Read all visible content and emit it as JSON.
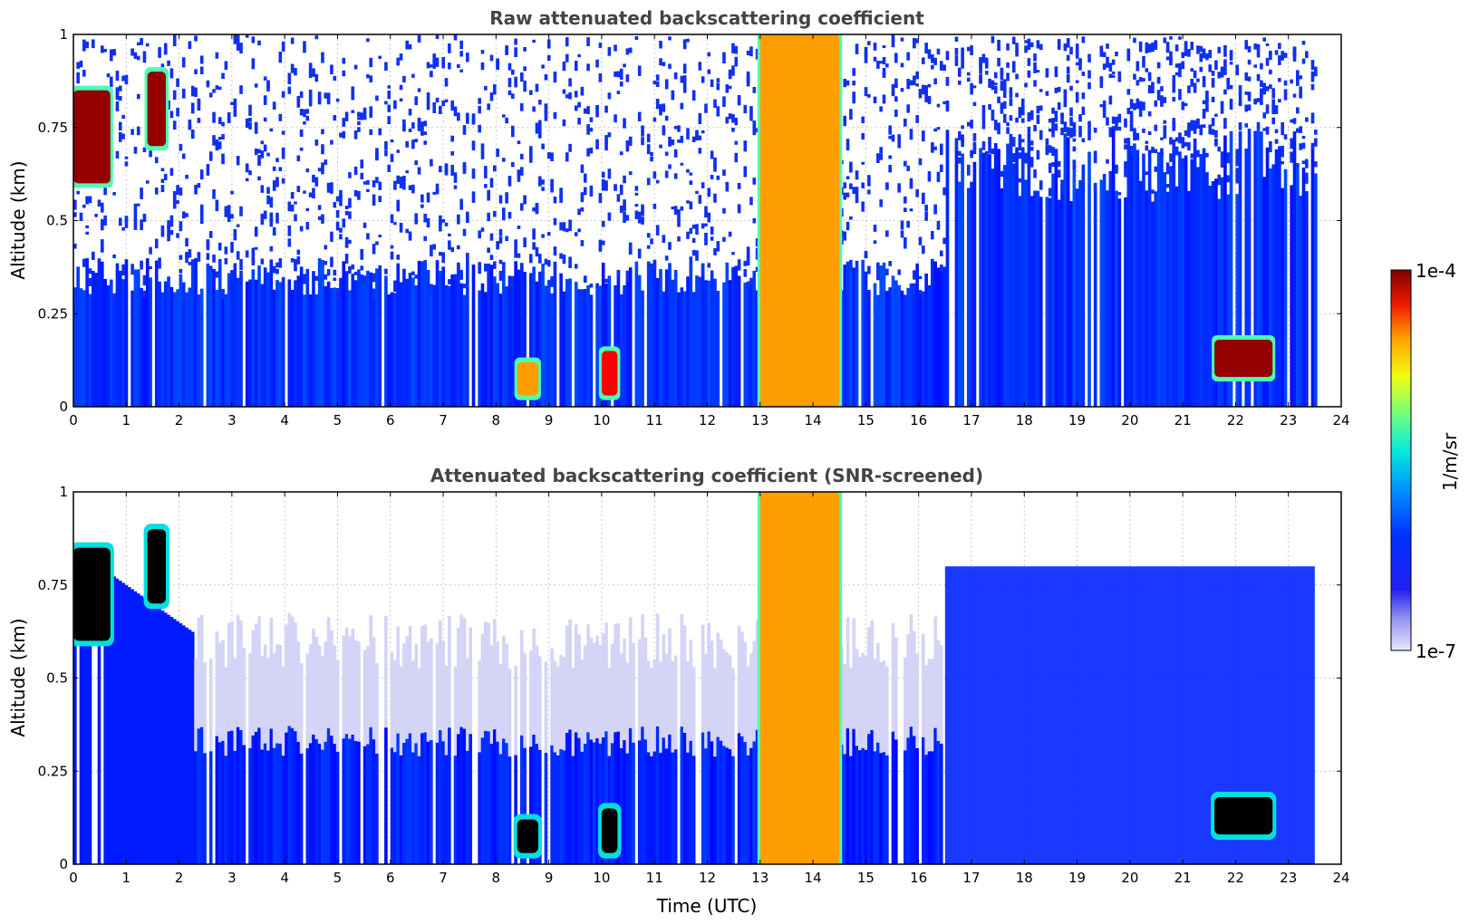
{
  "chart_data": [
    {
      "type": "heatmap",
      "title": "Raw attenuated backscattering coefficient",
      "xlabel": "",
      "ylabel": "Altitude (km)",
      "xlim": [
        0,
        24
      ],
      "ylim": [
        0,
        1
      ],
      "xticks": [
        "0",
        "1",
        "2",
        "3",
        "4",
        "5",
        "6",
        "7",
        "8",
        "9",
        "10",
        "11",
        "12",
        "13",
        "14",
        "15",
        "16",
        "17",
        "18",
        "19",
        "20",
        "21",
        "22",
        "23",
        "24"
      ],
      "yticks": [
        "0",
        "0.25",
        "0.5",
        "0.75",
        "1"
      ],
      "grid": true,
      "features": [
        {
          "name": "aerosol layer top",
          "x_range": [
            0,
            16.5
          ],
          "altitude_km": 0.35
        },
        {
          "name": "low cloud",
          "x_range": [
            0,
            0.7
          ],
          "altitude_range_km": [
            0.6,
            0.85
          ],
          "level": "1e-4"
        },
        {
          "name": "low cloud",
          "x_range": [
            1.4,
            1.75
          ],
          "altitude_range_km": [
            0.7,
            0.9
          ],
          "level": "1e-4"
        },
        {
          "name": "near-surface cloud",
          "x_range": [
            8.4,
            8.8
          ],
          "altitude_range_km": [
            0.03,
            0.12
          ],
          "level": "3e-5"
        },
        {
          "name": "near-surface cloud",
          "x_range": [
            10.0,
            10.3
          ],
          "altitude_range_km": [
            0.03,
            0.15
          ],
          "level": "5e-5"
        },
        {
          "name": "fog / full-column signal",
          "x_range": [
            13.0,
            14.5
          ],
          "altitude_range_km": [
            0,
            1
          ],
          "level": "3e-5"
        },
        {
          "name": "low cloud",
          "x_range": [
            21.6,
            22.7
          ],
          "altitude_range_km": [
            0.08,
            0.18
          ],
          "level": "1e-4"
        }
      ]
    },
    {
      "type": "heatmap",
      "title": "Attenuated backscattering coefficient (SNR-screened)",
      "xlabel": "Time (UTC)",
      "ylabel": "Altitude (km)",
      "xlim": [
        0,
        24
      ],
      "ylim": [
        0,
        1
      ],
      "xticks": [
        "0",
        "1",
        "2",
        "3",
        "4",
        "5",
        "6",
        "7",
        "8",
        "9",
        "10",
        "11",
        "12",
        "13",
        "14",
        "15",
        "16",
        "17",
        "18",
        "19",
        "20",
        "21",
        "22",
        "23",
        "24"
      ],
      "yticks": [
        "0",
        "0.25",
        "0.5",
        "0.75",
        "1"
      ],
      "grid": true,
      "features": [
        {
          "name": "aerosol layer top",
          "x_range": [
            2.3,
            16.5
          ],
          "altitude_km": 0.6
        },
        {
          "name": "low cloud (saturated)",
          "x_range": [
            0,
            0.7
          ],
          "altitude_range_km": [
            0.6,
            0.85
          ],
          "level": "saturated"
        },
        {
          "name": "low cloud (saturated)",
          "x_range": [
            1.4,
            1.75
          ],
          "altitude_range_km": [
            0.7,
            0.9
          ],
          "level": "saturated"
        },
        {
          "name": "near-surface cloud (saturated)",
          "x_range": [
            8.4,
            8.8
          ],
          "altitude_range_km": [
            0.03,
            0.12
          ],
          "level": "saturated"
        },
        {
          "name": "near-surface cloud (saturated)",
          "x_range": [
            10.0,
            10.3
          ],
          "altitude_range_km": [
            0.03,
            0.15
          ],
          "level": "saturated"
        },
        {
          "name": "fog / full-column signal",
          "x_range": [
            13.0,
            14.5
          ],
          "altitude_range_km": [
            0,
            1
          ],
          "level": "3e-5"
        },
        {
          "name": "boundary layer",
          "x_range": [
            16.5,
            23.5
          ],
          "altitude_range_km": [
            0,
            0.8
          ],
          "level": "1e-6"
        },
        {
          "name": "low cloud (saturated)",
          "x_range": [
            21.6,
            22.7
          ],
          "altitude_range_km": [
            0.08,
            0.18
          ],
          "level": "saturated"
        }
      ]
    }
  ],
  "colorbar": {
    "max_label": "1e-4",
    "min_label": "1e-7",
    "label": "1/m/sr",
    "scale": "log",
    "colormap": "jet",
    "low_color": "#e8e8fa",
    "high_color": "#800000",
    "saturated_color": "#000000"
  }
}
